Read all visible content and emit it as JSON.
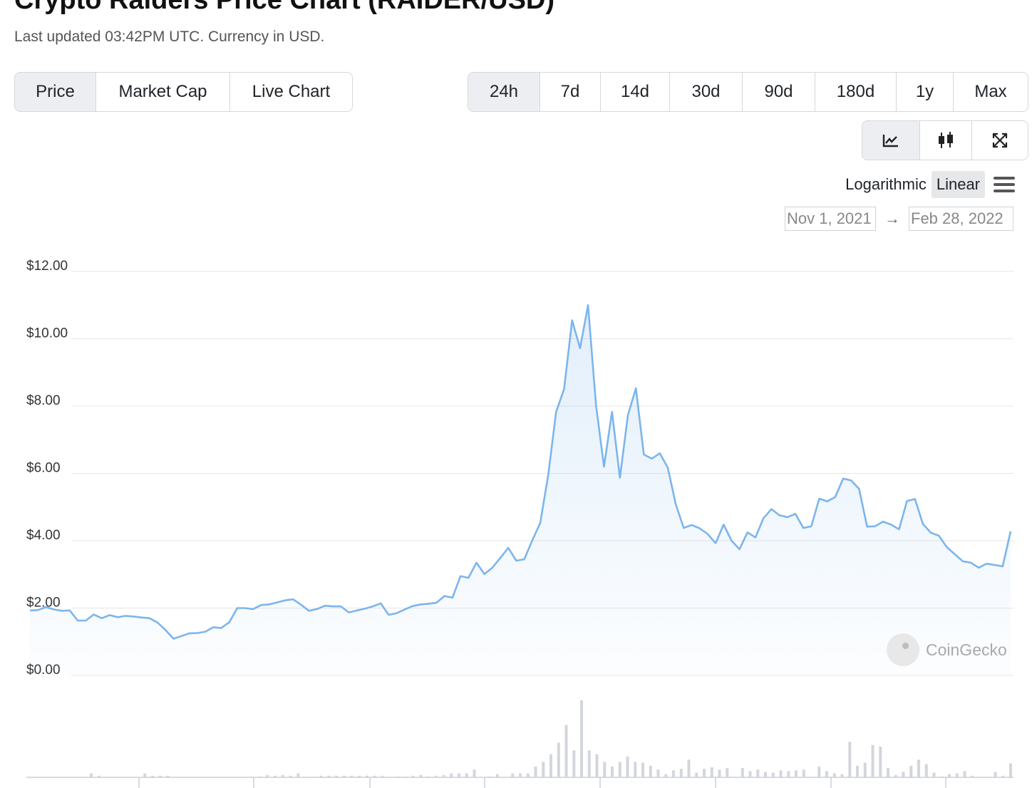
{
  "header": {
    "title": "Crypto Raiders Price Chart (RAIDER/USD)",
    "subtitle": "Last updated 03:42PM UTC. Currency in USD."
  },
  "tabs": [
    {
      "label": "Price",
      "active": true
    },
    {
      "label": "Market Cap",
      "active": false
    },
    {
      "label": "Live Chart",
      "active": false
    }
  ],
  "ranges": [
    {
      "label": "24h",
      "active": true
    },
    {
      "label": "7d",
      "active": false
    },
    {
      "label": "14d",
      "active": false
    },
    {
      "label": "30d",
      "active": false
    },
    {
      "label": "90d",
      "active": false
    },
    {
      "label": "180d",
      "active": false
    },
    {
      "label": "1y",
      "active": false
    },
    {
      "label": "Max",
      "active": false
    }
  ],
  "tools": [
    {
      "icon": "line-chart-icon",
      "active": true
    },
    {
      "icon": "candlestick-icon",
      "active": false
    },
    {
      "icon": "fullscreen-icon",
      "active": false
    }
  ],
  "scale": {
    "logarithmic": "Logarithmic",
    "linear": "Linear",
    "active": "linear"
  },
  "date_range": {
    "from": "Nov 1, 2021",
    "arrow": "→",
    "to": "Feb 28, 2022"
  },
  "watermark": {
    "text": "CoinGecko"
  },
  "colors": {
    "line": "#7cb5ec",
    "volume": "#d3d6dd",
    "grid": "#e6e6e6"
  },
  "chart_data": {
    "type": "area",
    "y_ticks": [
      "$0.00",
      "$2.00",
      "$4.00",
      "$6.00",
      "$8.00",
      "$10.00",
      "$12.00"
    ],
    "ylim": [
      0,
      12
    ],
    "x_range": [
      "Nov 1, 2021",
      "Feb 28, 2022"
    ],
    "series": [
      {
        "values": [
          1.93,
          1.94,
          2.03,
          1.96,
          1.92,
          1.93,
          1.63,
          1.63,
          1.81,
          1.7,
          1.79,
          1.73,
          1.77,
          1.75,
          1.72,
          1.7,
          1.57,
          1.35,
          1.09,
          1.17,
          1.25,
          1.26,
          1.3,
          1.43,
          1.41,
          1.58,
          2.0,
          2.0,
          1.97,
          2.09,
          2.11,
          2.17,
          2.23,
          2.26,
          2.1,
          1.92,
          1.97,
          2.07,
          2.05,
          2.05,
          1.87,
          1.93,
          1.98,
          2.05,
          2.14,
          1.8,
          1.85,
          1.96,
          2.06,
          2.11,
          2.13,
          2.16,
          2.36,
          2.31,
          2.95,
          2.9,
          3.35,
          3.01,
          3.2,
          3.49,
          3.79,
          3.41,
          3.45,
          4.01,
          4.53,
          5.95,
          7.83,
          8.51,
          10.55,
          9.72,
          11.0,
          8.02,
          6.2,
          7.83,
          5.87,
          7.73,
          8.53,
          6.56,
          6.44,
          6.6,
          6.17,
          5.09,
          4.38,
          4.47,
          4.37,
          4.2,
          3.93,
          4.48,
          4.0,
          3.75,
          4.25,
          4.1,
          4.67,
          4.94,
          4.76,
          4.7,
          4.8,
          4.38,
          4.43,
          5.25,
          5.17,
          5.3,
          5.85,
          5.79,
          5.54,
          4.42,
          4.43,
          4.57,
          4.48,
          4.34,
          5.18,
          5.24,
          4.5,
          4.24,
          4.15,
          3.81,
          3.6,
          3.39,
          3.35,
          3.2,
          3.32,
          3.28,
          3.24,
          4.28
        ]
      }
    ],
    "volume": [
      0,
      0,
      0,
      0,
      0,
      0,
      0,
      0,
      0.05,
      0.02,
      0,
      0,
      0,
      0,
      0,
      0.05,
      0.02,
      0.02,
      0.02,
      0,
      0,
      0,
      0,
      0,
      0,
      0,
      0,
      0,
      0,
      0,
      0.01,
      0.03,
      0.02,
      0.03,
      0.02,
      0.05,
      0,
      0,
      0.02,
      0.02,
      0.02,
      0.02,
      0.02,
      0.02,
      0.02,
      0.02,
      0.02,
      0,
      0.01,
      0.01,
      0.02,
      0.03,
      0.01,
      0.02,
      0.03,
      0.05,
      0.05,
      0.05,
      0.1,
      0,
      0.01,
      0.04,
      0,
      0.05,
      0.05,
      0.05,
      0.14,
      0.2,
      0.3,
      0.45,
      0.68,
      0.35,
      1.0,
      0.35,
      0.3,
      0.2,
      0.14,
      0.2,
      0.27,
      0.2,
      0.19,
      0.15,
      0.1,
      0.04,
      0.09,
      0.11,
      0.23,
      0.06,
      0.11,
      0.13,
      0.1,
      0.12,
      0,
      0.12,
      0.08,
      0.1,
      0.07,
      0.06,
      0.09,
      0.08,
      0.09,
      0.1,
      0,
      0.14,
      0.08,
      0.05,
      0.04,
      0.46,
      0.15,
      0.19,
      0.42,
      0.4,
      0.12,
      0.03,
      0.07,
      0.15,
      0.23,
      0.17,
      0.06,
      0.01,
      0.04,
      0.05,
      0.08,
      0.02,
      0,
      0,
      0.07,
      0.02,
      0.18
    ]
  }
}
